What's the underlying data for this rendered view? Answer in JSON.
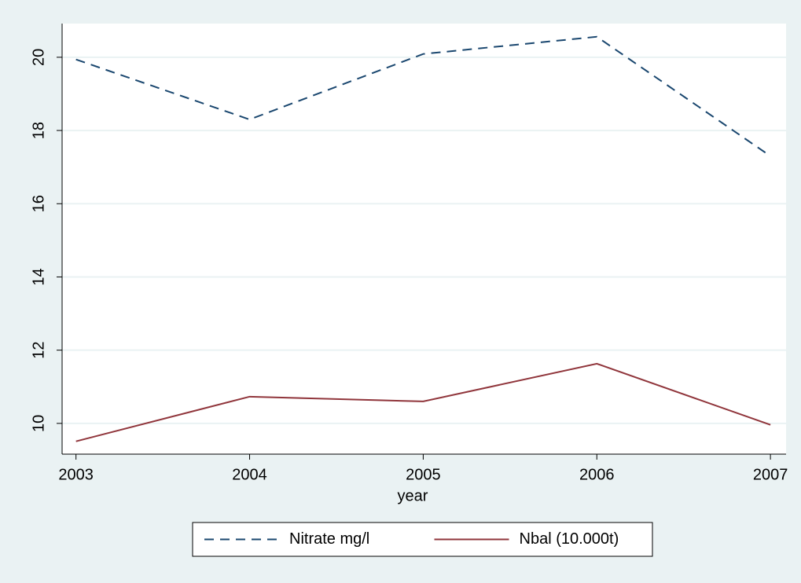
{
  "chart_data": {
    "type": "line",
    "x_label": "year",
    "x": [
      2003,
      2004,
      2005,
      2006,
      2007
    ],
    "series": [
      {
        "name": "Nitrate mg/l",
        "color": "#1a476f",
        "dashed": true,
        "values": [
          19.94,
          18.3,
          20.09,
          20.56,
          17.3
        ]
      },
      {
        "name": "Nbal (10.000t)",
        "color": "#90353b",
        "dashed": false,
        "values": [
          9.51,
          10.73,
          10.6,
          11.63,
          9.96
        ]
      }
    ],
    "xlim": [
      2002.92,
      2007.09
    ],
    "xticks": [
      2003,
      2004,
      2005,
      2006,
      2007
    ],
    "ylim": [
      9.16,
      20.92
    ],
    "yticks": [
      10,
      12,
      14,
      16,
      18,
      20
    ],
    "grid": true,
    "legend": "bottom"
  }
}
